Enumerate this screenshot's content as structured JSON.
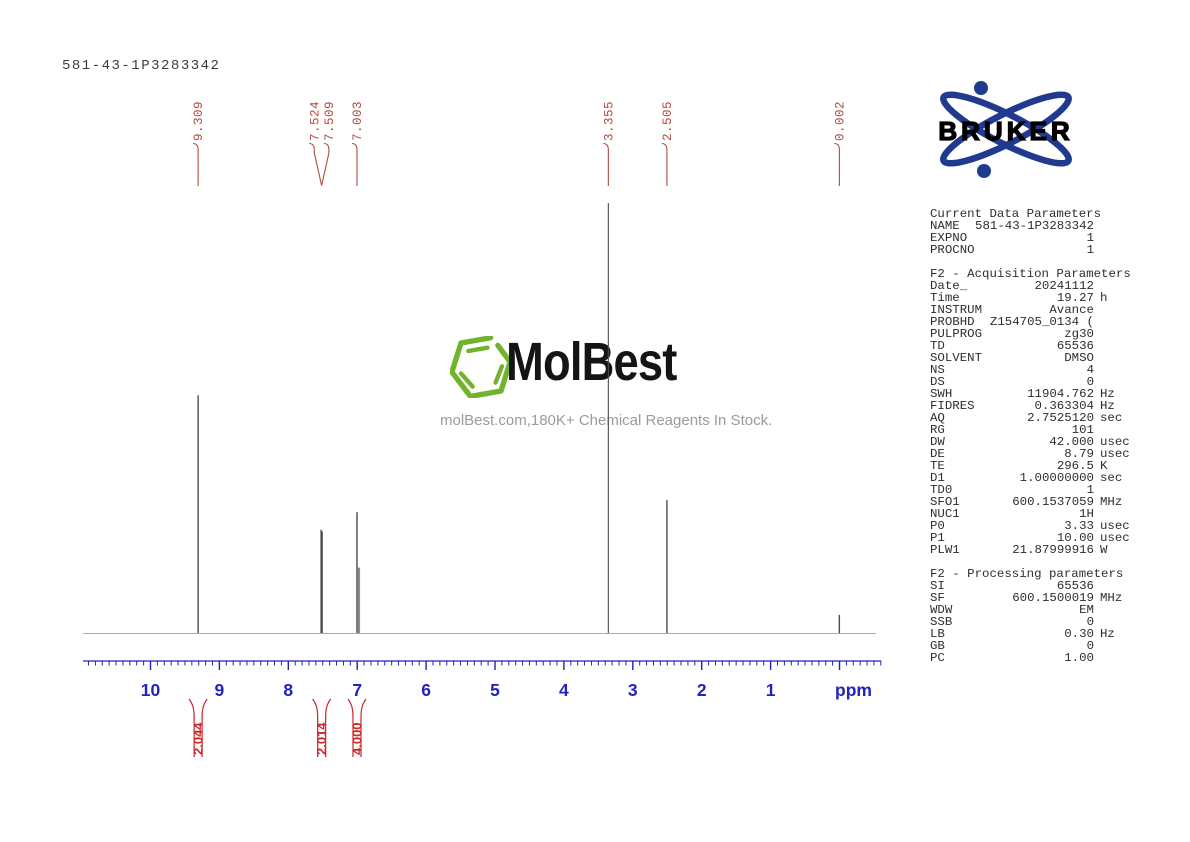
{
  "page": {
    "title": "581-43-1P3283342"
  },
  "watermark": {
    "brand": "MolBest",
    "tagline": "molBest.com,180K+ Chemical Reagents In Stock.",
    "logo_color": "#72b32e"
  },
  "bruker": {
    "wordmark": "BRUKER",
    "logo_color": "#203a8f"
  },
  "colors": {
    "peak_label": "#b2493f",
    "integral": "#cc2626",
    "axis": "#2222bd",
    "trace": "#4c4c4c",
    "baseline": "#ababab"
  },
  "chart_data": {
    "type": "line",
    "title": "1H NMR spectrum 581-43-1P3283342",
    "xlabel": "ppm",
    "x_unit": "ppm",
    "x_range": [
      10.95,
      -0.6
    ],
    "x_ticks": [
      "10",
      "9",
      "8",
      "7",
      "6",
      "5",
      "4",
      "3",
      "2",
      "1"
    ],
    "peaks": [
      {
        "ppm": 9.309,
        "label": "9.309",
        "rel_height": 0.553
      },
      {
        "ppm": 7.524,
        "label": "7.524",
        "rel_height": 0.24
      },
      {
        "ppm": 7.509,
        "label": "7.509",
        "rel_height": 0.236
      },
      {
        "ppm": 7.003,
        "label": "7.003",
        "rel_height": 0.281,
        "shoulder_rel_height": 0.152
      },
      {
        "ppm": 3.355,
        "label": "3.355",
        "rel_height": 1.0
      },
      {
        "ppm": 2.505,
        "label": "2.505",
        "rel_height": 0.309
      },
      {
        "ppm": 0.002,
        "label": "0.002",
        "rel_height": 0.042
      }
    ],
    "integrals": [
      {
        "ppm": 9.309,
        "value": "2.044"
      },
      {
        "ppm": 7.516,
        "value": "2.014"
      },
      {
        "ppm": 7.003,
        "value": "4.000"
      }
    ]
  },
  "parameters": {
    "sections": [
      {
        "header": "Current Data Parameters",
        "rows": [
          {
            "label": "NAME",
            "value": "581-43-1P3283342",
            "unit": ""
          },
          {
            "label": "EXPNO",
            "value": "1",
            "unit": ""
          },
          {
            "label": "PROCNO",
            "value": "1",
            "unit": ""
          }
        ]
      },
      {
        "header": "F2 - Acquisition Parameters",
        "rows": [
          {
            "label": "Date_",
            "value": "20241112",
            "unit": ""
          },
          {
            "label": "Time",
            "value": "19.27",
            "unit": "h"
          },
          {
            "label": "INSTRUM",
            "value": "Avance",
            "unit": ""
          },
          {
            "label": "PROBHD",
            "value": "Z154705_0134 (",
            "unit": ""
          },
          {
            "label": "PULPROG",
            "value": "zg30",
            "unit": ""
          },
          {
            "label": "TD",
            "value": "65536",
            "unit": ""
          },
          {
            "label": "SOLVENT",
            "value": "DMSO",
            "unit": ""
          },
          {
            "label": "NS",
            "value": "4",
            "unit": ""
          },
          {
            "label": "DS",
            "value": "0",
            "unit": ""
          },
          {
            "label": "SWH",
            "value": "11904.762",
            "unit": "Hz"
          },
          {
            "label": "FIDRES",
            "value": "0.363304",
            "unit": "Hz"
          },
          {
            "label": "AQ",
            "value": "2.7525120",
            "unit": "sec"
          },
          {
            "label": "RG",
            "value": "101",
            "unit": ""
          },
          {
            "label": "DW",
            "value": "42.000",
            "unit": "usec"
          },
          {
            "label": "DE",
            "value": "8.79",
            "unit": "usec"
          },
          {
            "label": "TE",
            "value": "296.5",
            "unit": "K"
          },
          {
            "label": "D1",
            "value": "1.00000000",
            "unit": "sec"
          },
          {
            "label": "TD0",
            "value": "1",
            "unit": ""
          },
          {
            "label": "SFO1",
            "value": "600.1537059",
            "unit": "MHz"
          },
          {
            "label": "NUC1",
            "value": "1H",
            "unit": ""
          },
          {
            "label": "P0",
            "value": "3.33",
            "unit": "usec"
          },
          {
            "label": "P1",
            "value": "10.00",
            "unit": "usec"
          },
          {
            "label": "PLW1",
            "value": "21.87999916",
            "unit": "W"
          }
        ]
      },
      {
        "header": "F2 - Processing parameters",
        "rows": [
          {
            "label": "SI",
            "value": "65536",
            "unit": ""
          },
          {
            "label": "SF",
            "value": "600.1500019",
            "unit": "MHz"
          },
          {
            "label": "WDW",
            "value": "EM",
            "unit": ""
          },
          {
            "label": "SSB",
            "value": "0",
            "unit": ""
          },
          {
            "label": "LB",
            "value": "0.30",
            "unit": "Hz"
          },
          {
            "label": "GB",
            "value": "0",
            "unit": ""
          },
          {
            "label": "PC",
            "value": "1.00",
            "unit": ""
          }
        ]
      }
    ]
  }
}
